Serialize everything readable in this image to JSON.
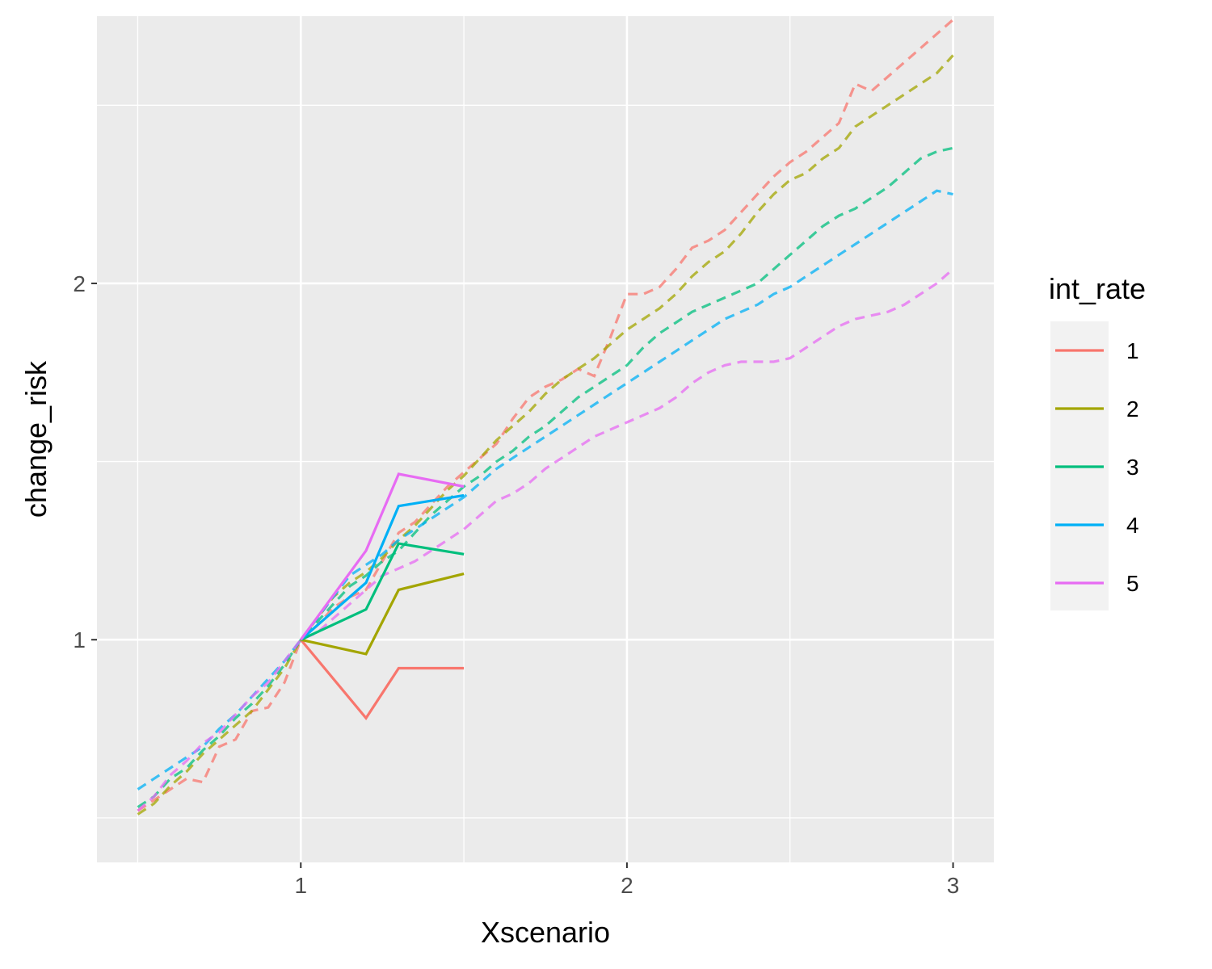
{
  "chart_data": {
    "type": "line",
    "title": "",
    "xlabel": "Xscenario",
    "ylabel": "change_risk",
    "xlim": [
      0.375,
      3.125
    ],
    "ylim": [
      0.375,
      2.75
    ],
    "x_ticks": [
      1,
      2,
      3
    ],
    "y_ticks": [
      1,
      2
    ],
    "grid": true,
    "legend": {
      "title": "int_rate",
      "position": "right",
      "entries": [
        "1",
        "2",
        "3",
        "4",
        "5"
      ]
    },
    "colors": {
      "1": "#F8766D",
      "2": "#A3A500",
      "3": "#00BF7D",
      "4": "#00B0F6",
      "5": "#E76BF3"
    },
    "observed_series": [
      {
        "name": "1",
        "x": [
          1,
          1.2,
          1.3,
          1.5
        ],
        "y": [
          1,
          0.78,
          0.92,
          0.92
        ]
      },
      {
        "name": "2",
        "x": [
          1,
          1.2,
          1.3,
          1.5
        ],
        "y": [
          1,
          0.96,
          1.14,
          1.185
        ]
      },
      {
        "name": "3",
        "x": [
          1,
          1.2,
          1.3,
          1.5
        ],
        "y": [
          1,
          1.085,
          1.27,
          1.24
        ]
      },
      {
        "name": "4",
        "x": [
          1,
          1.2,
          1.3,
          1.5
        ],
        "y": [
          1,
          1.16,
          1.375,
          1.405
        ]
      },
      {
        "name": "5",
        "x": [
          1,
          1.2,
          1.3,
          1.5
        ],
        "y": [
          1,
          1.25,
          1.465,
          1.43
        ]
      }
    ],
    "projected_series": [
      {
        "name": "1",
        "x": [
          0.5,
          0.55,
          0.6,
          0.65,
          0.7,
          0.75,
          0.8,
          0.85,
          0.9,
          0.95,
          1.0,
          1.05,
          1.1,
          1.15,
          1.2,
          1.25,
          1.3,
          1.35,
          1.4,
          1.45,
          1.5,
          1.55,
          1.6,
          1.65,
          1.7,
          1.75,
          1.8,
          1.85,
          1.9,
          1.95,
          2.0,
          2.05,
          2.1,
          2.15,
          2.2,
          2.25,
          2.3,
          2.35,
          2.4,
          2.45,
          2.5,
          2.55,
          2.6,
          2.65,
          2.7,
          2.75,
          2.8,
          2.85,
          2.9,
          2.95,
          3.0
        ],
        "y": [
          0.52,
          0.55,
          0.58,
          0.61,
          0.6,
          0.7,
          0.72,
          0.8,
          0.81,
          0.88,
          1.0,
          1.04,
          1.09,
          1.12,
          1.14,
          1.22,
          1.3,
          1.33,
          1.38,
          1.43,
          1.47,
          1.51,
          1.55,
          1.62,
          1.68,
          1.71,
          1.73,
          1.76,
          1.74,
          1.85,
          1.97,
          1.97,
          1.99,
          2.04,
          2.1,
          2.12,
          2.15,
          2.2,
          2.25,
          2.3,
          2.34,
          2.37,
          2.41,
          2.45,
          2.56,
          2.54,
          2.58,
          2.62,
          2.66,
          2.7,
          2.74
        ]
      },
      {
        "name": "2",
        "x": [
          0.5,
          0.55,
          0.6,
          0.65,
          0.7,
          0.75,
          0.8,
          0.85,
          0.9,
          0.95,
          1.0,
          1.05,
          1.1,
          1.15,
          1.2,
          1.25,
          1.3,
          1.35,
          1.4,
          1.45,
          1.5,
          1.55,
          1.6,
          1.65,
          1.7,
          1.75,
          1.8,
          1.85,
          1.9,
          1.95,
          2.0,
          2.05,
          2.1,
          2.15,
          2.2,
          2.25,
          2.3,
          2.35,
          2.4,
          2.45,
          2.5,
          2.55,
          2.6,
          2.65,
          2.7,
          2.75,
          2.8,
          2.85,
          2.9,
          2.95,
          3.0
        ],
        "y": [
          0.51,
          0.54,
          0.59,
          0.63,
          0.68,
          0.72,
          0.76,
          0.8,
          0.86,
          0.92,
          1.0,
          1.06,
          1.12,
          1.16,
          1.19,
          1.23,
          1.28,
          1.32,
          1.37,
          1.42,
          1.46,
          1.51,
          1.56,
          1.6,
          1.64,
          1.69,
          1.73,
          1.76,
          1.79,
          1.83,
          1.87,
          1.9,
          1.93,
          1.97,
          2.02,
          2.06,
          2.09,
          2.14,
          2.2,
          2.25,
          2.29,
          2.31,
          2.35,
          2.38,
          2.44,
          2.47,
          2.5,
          2.53,
          2.56,
          2.59,
          2.64
        ]
      },
      {
        "name": "3",
        "x": [
          0.5,
          0.55,
          0.6,
          0.65,
          0.7,
          0.75,
          0.8,
          0.85,
          0.9,
          0.95,
          1.0,
          1.05,
          1.1,
          1.15,
          1.2,
          1.25,
          1.3,
          1.35,
          1.4,
          1.45,
          1.5,
          1.55,
          1.6,
          1.65,
          1.7,
          1.75,
          1.8,
          1.85,
          1.9,
          1.95,
          2.0,
          2.05,
          2.1,
          2.15,
          2.2,
          2.25,
          2.3,
          2.35,
          2.4,
          2.45,
          2.5,
          2.55,
          2.6,
          2.65,
          2.7,
          2.75,
          2.8,
          2.85,
          2.9,
          2.95,
          3.0
        ],
        "y": [
          0.53,
          0.56,
          0.61,
          0.64,
          0.69,
          0.73,
          0.78,
          0.82,
          0.87,
          0.93,
          1.0,
          1.05,
          1.1,
          1.15,
          1.18,
          1.22,
          1.25,
          1.3,
          1.35,
          1.39,
          1.43,
          1.46,
          1.5,
          1.53,
          1.57,
          1.6,
          1.64,
          1.68,
          1.71,
          1.74,
          1.77,
          1.82,
          1.86,
          1.89,
          1.92,
          1.94,
          1.96,
          1.98,
          2.0,
          2.04,
          2.08,
          2.12,
          2.16,
          2.19,
          2.21,
          2.24,
          2.27,
          2.31,
          2.35,
          2.37,
          2.38
        ]
      },
      {
        "name": "4",
        "x": [
          0.5,
          0.55,
          0.6,
          0.65,
          0.7,
          0.75,
          0.8,
          0.85,
          0.9,
          0.95,
          1.0,
          1.05,
          1.1,
          1.15,
          1.2,
          1.25,
          1.3,
          1.35,
          1.4,
          1.45,
          1.5,
          1.55,
          1.6,
          1.65,
          1.7,
          1.75,
          1.8,
          1.85,
          1.9,
          1.95,
          2.0,
          2.05,
          2.1,
          2.15,
          2.2,
          2.25,
          2.3,
          2.35,
          2.4,
          2.45,
          2.5,
          2.55,
          2.6,
          2.65,
          2.7,
          2.75,
          2.8,
          2.85,
          2.9,
          2.95,
          3.0
        ],
        "y": [
          0.58,
          0.61,
          0.64,
          0.67,
          0.7,
          0.75,
          0.79,
          0.84,
          0.89,
          0.94,
          1.0,
          1.06,
          1.12,
          1.18,
          1.21,
          1.24,
          1.28,
          1.31,
          1.34,
          1.37,
          1.4,
          1.44,
          1.48,
          1.51,
          1.54,
          1.57,
          1.6,
          1.63,
          1.66,
          1.69,
          1.72,
          1.75,
          1.78,
          1.81,
          1.84,
          1.87,
          1.9,
          1.92,
          1.94,
          1.97,
          1.99,
          2.02,
          2.05,
          2.08,
          2.11,
          2.14,
          2.17,
          2.2,
          2.23,
          2.26,
          2.25
        ]
      },
      {
        "name": "5",
        "x": [
          0.5,
          0.55,
          0.6,
          0.65,
          0.7,
          0.75,
          0.8,
          0.85,
          0.9,
          0.95,
          1.0,
          1.05,
          1.1,
          1.15,
          1.2,
          1.25,
          1.3,
          1.35,
          1.4,
          1.45,
          1.5,
          1.55,
          1.6,
          1.65,
          1.7,
          1.75,
          1.8,
          1.85,
          1.9,
          1.95,
          2.0,
          2.05,
          2.1,
          2.15,
          2.2,
          2.25,
          2.3,
          2.35,
          2.4,
          2.45,
          2.5,
          2.55,
          2.6,
          2.65,
          2.7,
          2.75,
          2.8,
          2.85,
          2.9,
          2.95,
          3.0
        ],
        "y": [
          0.52,
          0.56,
          0.62,
          0.66,
          0.71,
          0.74,
          0.79,
          0.84,
          0.88,
          0.94,
          1.0,
          1.02,
          1.06,
          1.1,
          1.14,
          1.18,
          1.2,
          1.22,
          1.25,
          1.28,
          1.31,
          1.35,
          1.39,
          1.41,
          1.44,
          1.48,
          1.51,
          1.54,
          1.57,
          1.59,
          1.61,
          1.63,
          1.65,
          1.68,
          1.72,
          1.75,
          1.77,
          1.78,
          1.78,
          1.78,
          1.79,
          1.82,
          1.85,
          1.88,
          1.9,
          1.91,
          1.92,
          1.94,
          1.97,
          2.0,
          2.04
        ]
      }
    ]
  }
}
